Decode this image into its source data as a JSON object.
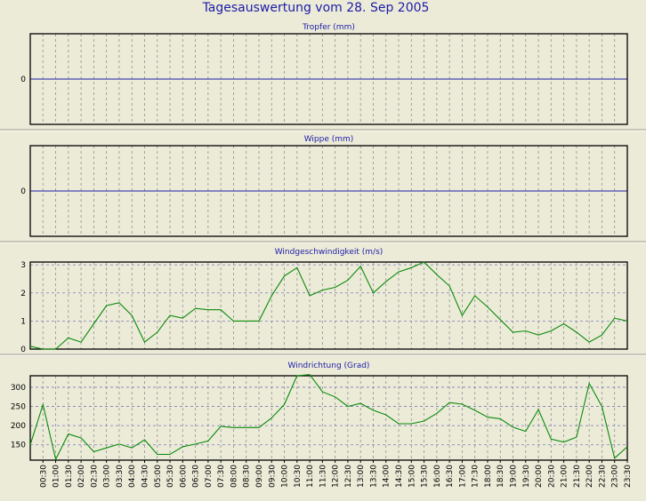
{
  "page_title": "Tagesauswertung vom 28. Sep 2005",
  "colors": {
    "background": "#ecebd8",
    "title": "#1c1ca8",
    "zero_line": "#1c1ca8",
    "series": "#0a8a0a",
    "grid_vertical": "#909090",
    "grid_horizontal": "#7a7ab8"
  },
  "x_ticks": [
    "00:30",
    "01:00",
    "01:30",
    "02:00",
    "02:30",
    "03:00",
    "03:30",
    "04:00",
    "04:30",
    "05:00",
    "05:30",
    "06:00",
    "06:30",
    "07:00",
    "07:30",
    "08:00",
    "08:30",
    "09:00",
    "09:30",
    "10:00",
    "10:30",
    "11:00",
    "11:30",
    "12:00",
    "12:30",
    "13:00",
    "13:30",
    "14:00",
    "14:30",
    "15:00",
    "15:30",
    "16:00",
    "16:30",
    "17:00",
    "17:30",
    "18:00",
    "18:30",
    "19:00",
    "19:30",
    "20:00",
    "20:30",
    "21:00",
    "21:30",
    "22:00",
    "22:30",
    "23:00",
    "23:30"
  ],
  "chart_data": [
    {
      "type": "line",
      "title": "Tropfer (mm)",
      "x_range": [
        "00:00",
        "23:30"
      ],
      "yticks": [
        0
      ],
      "ylim": [
        -1,
        1
      ],
      "grid": true,
      "series": [
        {
          "x": [],
          "values": []
        }
      ]
    },
    {
      "type": "line",
      "title": "Wippe (mm)",
      "x_range": [
        "00:00",
        "23:30"
      ],
      "yticks": [
        0
      ],
      "ylim": [
        -1,
        1
      ],
      "grid": true,
      "series": [
        {
          "x": [],
          "values": []
        }
      ]
    },
    {
      "type": "line",
      "title": "Windgeschwindigkeit (m/s)",
      "x_range": [
        "00:00",
        "23:30"
      ],
      "yticks": [
        0,
        1,
        2,
        3
      ],
      "ylim": [
        0,
        3.1
      ],
      "grid": true,
      "series": [
        {
          "x": [
            "00:00",
            "00:30",
            "01:00",
            "01:30",
            "02:00",
            "02:30",
            "03:00",
            "03:30",
            "04:00",
            "04:30",
            "05:00",
            "05:30",
            "06:00",
            "06:30",
            "07:00",
            "07:30",
            "08:00",
            "08:30",
            "09:00",
            "09:30",
            "10:00",
            "10:30",
            "11:00",
            "11:30",
            "12:00",
            "12:30",
            "13:00",
            "13:30",
            "14:00",
            "14:30",
            "15:00",
            "15:30",
            "16:00",
            "16:30",
            "17:00",
            "17:30",
            "18:00",
            "18:30",
            "19:00",
            "19:30",
            "20:00",
            "20:30",
            "21:00",
            "21:30",
            "22:00",
            "22:30",
            "23:00",
            "23:30"
          ],
          "values": [
            0.1,
            0.0,
            0.0,
            0.4,
            0.25,
            0.9,
            1.55,
            1.65,
            1.2,
            0.25,
            0.6,
            1.2,
            1.1,
            1.45,
            1.4,
            1.4,
            1.0,
            1.0,
            1.0,
            1.9,
            2.6,
            2.9,
            1.9,
            2.1,
            2.2,
            2.45,
            2.95,
            2.0,
            2.4,
            2.75,
            2.9,
            3.1,
            2.65,
            2.25,
            1.2,
            1.9,
            1.5,
            1.05,
            0.6,
            0.65,
            0.5,
            0.65,
            0.9,
            0.6,
            0.25,
            0.5,
            1.1,
            1.0
          ]
        }
      ]
    },
    {
      "type": "line",
      "title": "Windrichtung (Grad)",
      "x_range": [
        "00:00",
        "23:30"
      ],
      "yticks": [
        150,
        200,
        250,
        300
      ],
      "ylim": [
        110,
        330
      ],
      "grid": true,
      "series": [
        {
          "x": [
            "00:00",
            "00:30",
            "01:00",
            "01:30",
            "02:00",
            "02:30",
            "03:00",
            "03:30",
            "04:00",
            "04:30",
            "05:00",
            "05:30",
            "06:00",
            "06:30",
            "07:00",
            "07:30",
            "08:00",
            "08:30",
            "09:00",
            "09:30",
            "10:00",
            "10:30",
            "11:00",
            "11:30",
            "12:00",
            "12:30",
            "13:00",
            "13:30",
            "14:00",
            "14:30",
            "15:00",
            "15:30",
            "16:00",
            "16:30",
            "17:00",
            "17:30",
            "18:00",
            "18:30",
            "19:00",
            "19:30",
            "20:00",
            "20:30",
            "21:00",
            "21:30",
            "22:00",
            "22:30",
            "23:00",
            "23:30"
          ],
          "values": [
            150,
            255,
            112,
            178,
            168,
            132,
            142,
            152,
            142,
            163,
            125,
            125,
            145,
            152,
            160,
            198,
            195,
            195,
            195,
            220,
            255,
            330,
            333,
            288,
            275,
            250,
            258,
            240,
            228,
            205,
            205,
            212,
            232,
            260,
            256,
            240,
            222,
            218,
            196,
            185,
            242,
            165,
            157,
            170,
            310,
            250,
            115,
            145
          ]
        }
      ]
    }
  ]
}
